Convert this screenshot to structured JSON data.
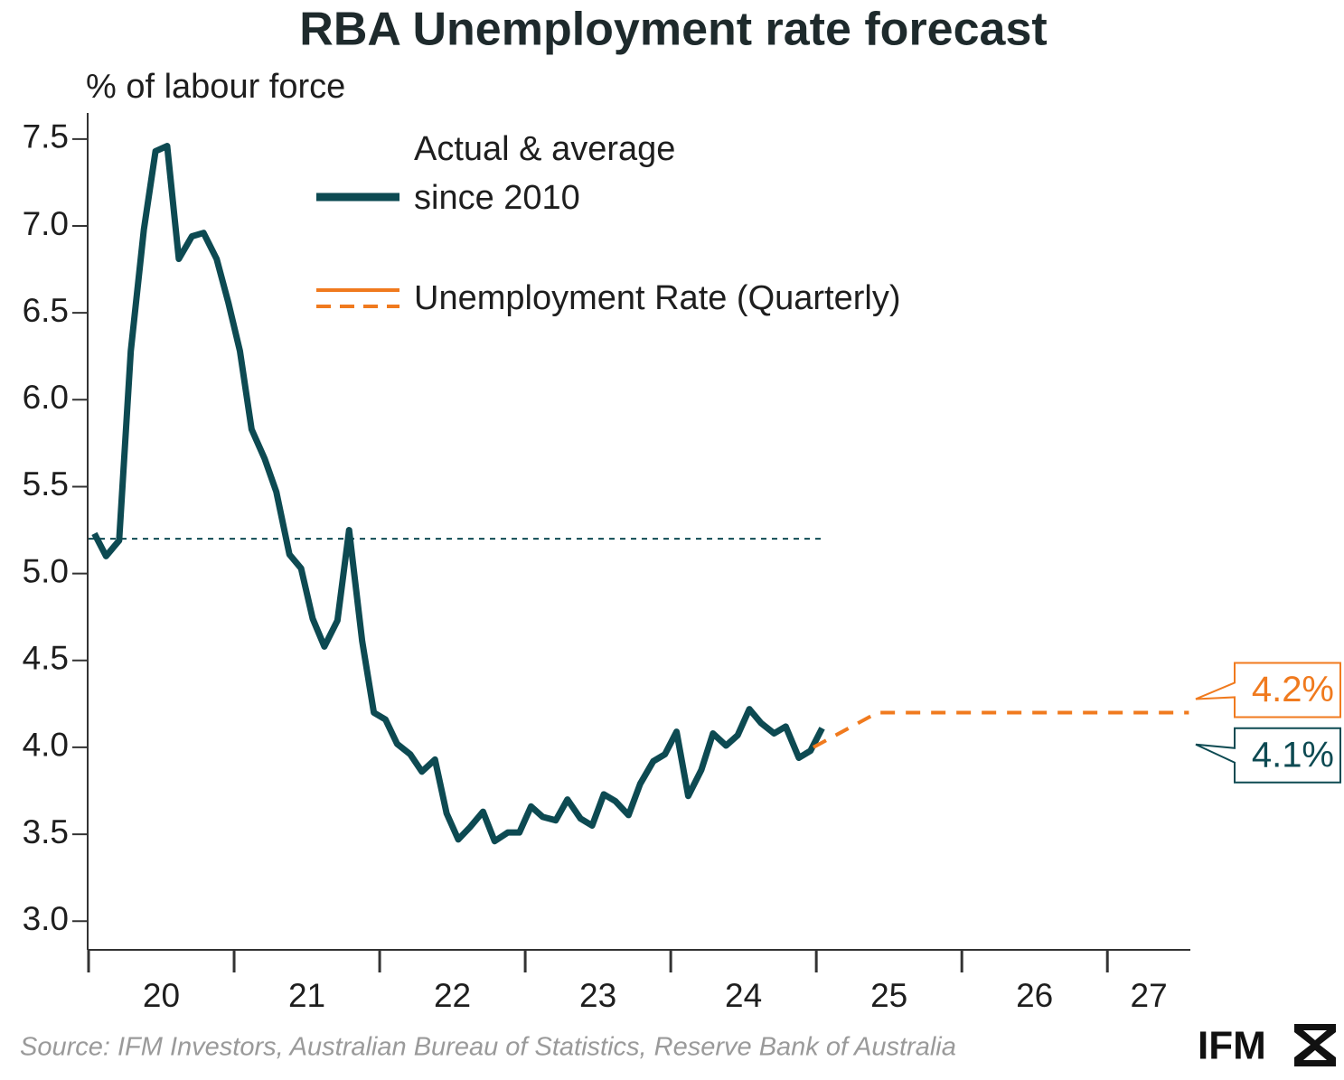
{
  "chart_data": {
    "type": "line",
    "title": "RBA Unemployment rate forecast",
    "y_label": "% of labour force",
    "source": "Source: IFM Investors, Australian Bureau of Statistics, Reserve Bank of Australia",
    "logo": "IFM",
    "xlim": [
      2020,
      2027.57
    ],
    "ylim": [
      2.84,
      7.65
    ],
    "xticks": [
      {
        "value": 2020,
        "label": "20"
      },
      {
        "value": 2021,
        "label": "21"
      },
      {
        "value": 2022,
        "label": "22"
      },
      {
        "value": 2023,
        "label": "23"
      },
      {
        "value": 2024,
        "label": "24"
      },
      {
        "value": 2025,
        "label": "25"
      },
      {
        "value": 2026,
        "label": "26"
      },
      {
        "value": 2027,
        "label": "27"
      }
    ],
    "yticks": [
      {
        "value": 3,
        "label": "3.0"
      },
      3.5,
      {
        "value": 4,
        "label": "4.0"
      },
      4.5,
      {
        "value": 5,
        "label": "5.0"
      },
      5.5,
      {
        "value": 6,
        "label": "6.0"
      },
      6.5,
      {
        "value": 7,
        "label": "7.0"
      },
      7.5
    ],
    "series": [
      {
        "name": "Actual & average since 2010",
        "color": "#0d4a52",
        "style": "solid",
        "end_label": "4.1%",
        "x": [
          2020.04,
          2020.12,
          2020.21,
          2020.29,
          2020.38,
          2020.46,
          2020.54,
          2020.62,
          2020.71,
          2020.79,
          2020.88,
          2020.96,
          2021.04,
          2021.12,
          2021.21,
          2021.29,
          2021.38,
          2021.46,
          2021.54,
          2021.62,
          2021.71,
          2021.79,
          2021.88,
          2021.96,
          2022.04,
          2022.12,
          2022.21,
          2022.29,
          2022.38,
          2022.46,
          2022.54,
          2022.62,
          2022.71,
          2022.79,
          2022.88,
          2022.96,
          2023.04,
          2023.12,
          2023.21,
          2023.29,
          2023.38,
          2023.46,
          2023.54,
          2023.62,
          2023.71,
          2023.79,
          2023.88,
          2023.96,
          2024.04,
          2024.12,
          2024.21,
          2024.29,
          2024.38,
          2024.46,
          2024.54,
          2024.62,
          2024.71,
          2024.79,
          2024.88,
          2024.96,
          2025.04
        ],
        "values": [
          5.23,
          5.1,
          5.19,
          6.28,
          6.98,
          7.43,
          7.46,
          6.81,
          6.94,
          6.96,
          6.81,
          6.56,
          6.28,
          5.83,
          5.66,
          5.47,
          5.11,
          5.03,
          4.74,
          4.58,
          4.73,
          5.25,
          4.61,
          4.2,
          4.16,
          4.02,
          3.96,
          3.86,
          3.93,
          3.62,
          3.47,
          3.54,
          3.63,
          3.46,
          3.51,
          3.51,
          3.66,
          3.6,
          3.58,
          3.7,
          3.59,
          3.55,
          3.73,
          3.69,
          3.61,
          3.79,
          3.92,
          3.96,
          4.09,
          3.72,
          3.87,
          4.08,
          4.01,
          4.07,
          4.22,
          4.14,
          4.08,
          4.12,
          3.94,
          3.98,
          4.11
        ]
      },
      {
        "color": "#0d4a52",
        "style": "average",
        "x": [
          2020,
          2025.05
        ],
        "values": [
          5.2,
          5.2
        ]
      },
      {
        "name": "Unemployment Rate (Quarterly)",
        "color": "#f07a1e",
        "style": "dashed",
        "end_label": "4.2%",
        "x": [
          2024.98,
          2025.42,
          2027.56
        ],
        "values": [
          4.0,
          4.2,
          4.2
        ]
      }
    ]
  }
}
